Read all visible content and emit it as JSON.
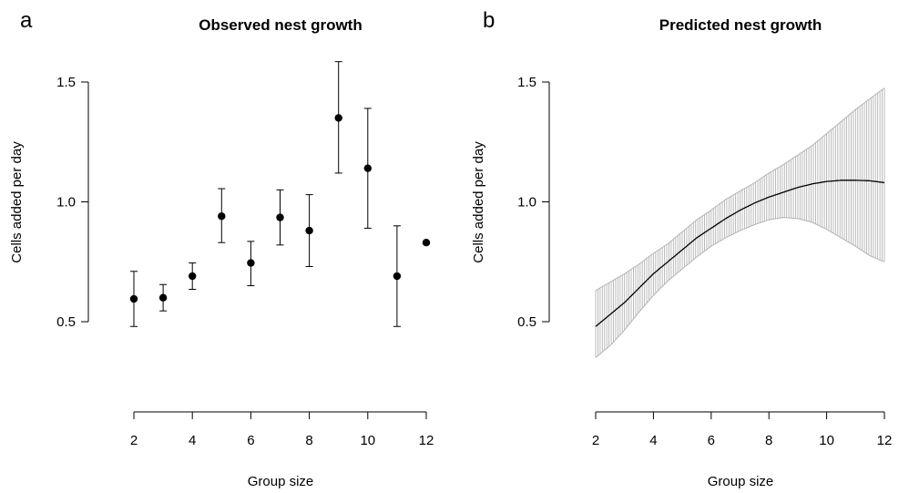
{
  "chart_data": [
    {
      "panel_letter": "a",
      "type": "scatter",
      "title": "Observed nest growth",
      "xlabel": "Group size",
      "ylabel": "Cells added per day",
      "xlim": [
        2,
        12
      ],
      "ylim": [
        0.5,
        1.5
      ],
      "xticks": [
        "2",
        "4",
        "6",
        "8",
        "10",
        "12"
      ],
      "yticks": [
        "0.5",
        "1.0",
        "1.5"
      ],
      "grid": false,
      "points": [
        {
          "x": 2,
          "y": 0.595,
          "lower": 0.48,
          "upper": 0.71
        },
        {
          "x": 3,
          "y": 0.6,
          "lower": 0.545,
          "upper": 0.655
        },
        {
          "x": 4,
          "y": 0.69,
          "lower": 0.635,
          "upper": 0.745
        },
        {
          "x": 5,
          "y": 0.94,
          "lower": 0.83,
          "upper": 1.055
        },
        {
          "x": 6,
          "y": 0.745,
          "lower": 0.65,
          "upper": 0.835
        },
        {
          "x": 7,
          "y": 0.935,
          "lower": 0.82,
          "upper": 1.05
        },
        {
          "x": 8,
          "y": 0.88,
          "lower": 0.73,
          "upper": 1.03
        },
        {
          "x": 9,
          "y": 1.35,
          "lower": 1.12,
          "upper": 1.585
        },
        {
          "x": 10,
          "y": 1.14,
          "lower": 0.89,
          "upper": 1.39
        },
        {
          "x": 11,
          "y": 0.69,
          "lower": 0.48,
          "upper": 0.9
        },
        {
          "x": 12,
          "y": 0.83,
          "lower": null,
          "upper": null
        }
      ]
    },
    {
      "panel_letter": "b",
      "type": "line",
      "title": "Predicted nest growth",
      "xlabel": "Group size",
      "ylabel": "Cells added per day",
      "xlim": [
        2,
        12
      ],
      "ylim": [
        0.5,
        1.5
      ],
      "xticks": [
        "2",
        "4",
        "6",
        "8",
        "10",
        "12"
      ],
      "yticks": [
        "0.5",
        "1.0",
        "1.5"
      ],
      "grid": false,
      "band_color": "#b3b3b3",
      "line_color": "#000000",
      "x": [
        2,
        2.5,
        3,
        3.5,
        4,
        4.5,
        5,
        5.5,
        6,
        6.5,
        7,
        7.5,
        8,
        8.5,
        9,
        9.5,
        10,
        10.5,
        11,
        11.5,
        12
      ],
      "y": [
        0.48,
        0.53,
        0.58,
        0.64,
        0.7,
        0.75,
        0.8,
        0.85,
        0.89,
        0.93,
        0.965,
        0.995,
        1.02,
        1.04,
        1.06,
        1.075,
        1.085,
        1.09,
        1.09,
        1.088,
        1.08
      ],
      "lower": [
        0.35,
        0.4,
        0.465,
        0.54,
        0.61,
        0.67,
        0.72,
        0.77,
        0.815,
        0.85,
        0.88,
        0.905,
        0.925,
        0.935,
        0.93,
        0.915,
        0.885,
        0.85,
        0.815,
        0.775,
        0.75
      ],
      "upper": [
        0.63,
        0.665,
        0.7,
        0.74,
        0.785,
        0.825,
        0.875,
        0.925,
        0.965,
        1.01,
        1.045,
        1.08,
        1.12,
        1.155,
        1.195,
        1.235,
        1.285,
        1.335,
        1.385,
        1.43,
        1.475
      ]
    }
  ]
}
